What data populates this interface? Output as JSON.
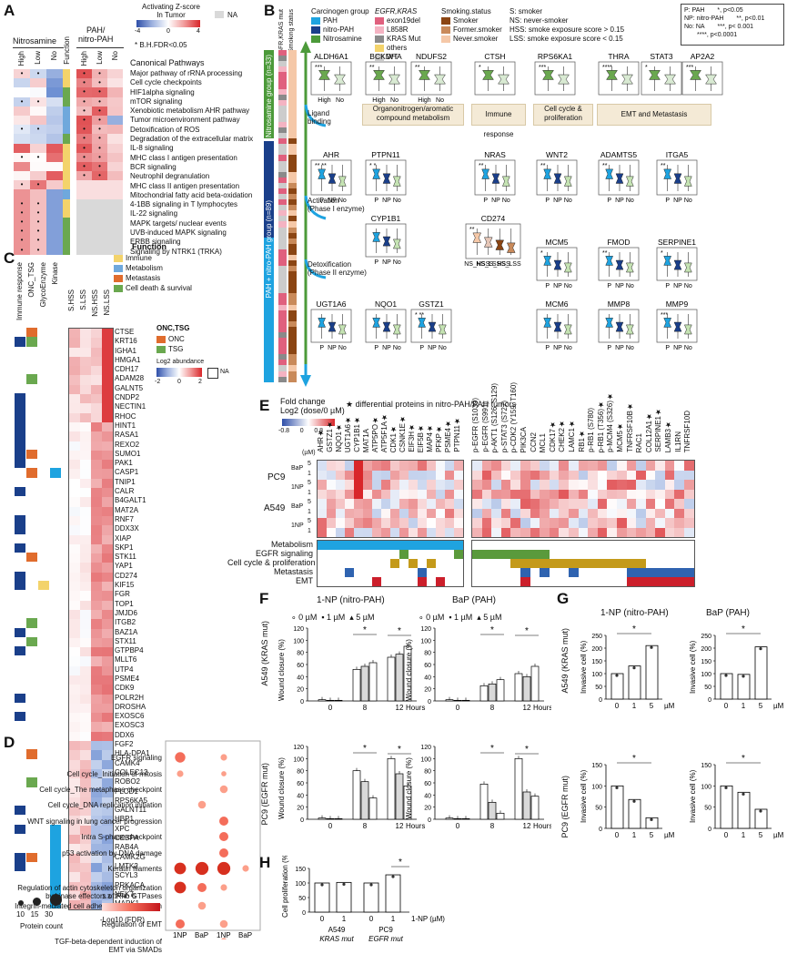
{
  "panels": {
    "A": {
      "letter": "A",
      "legend_title": "Activating Z-score\nIn Tumor",
      "legend_ticks": [
        "-4",
        "0",
        "4"
      ],
      "na": "NA",
      "fdr_note": "* B.H.FDR<0.05",
      "group_nitrosamine": "Nitrosamine",
      "group_pah": "PAH/\nnitro-PAH",
      "col_labels": [
        "High",
        "Low",
        "No"
      ],
      "function_label": "Function",
      "pathways_header": "Canonical Pathways",
      "pathways": [
        "Major pathway of rRNA processing",
        "Cell cycle checkpoints",
        "HIF1alpha signaling",
        "mTOR signaling",
        "Xenobiotic metabolism AHR pathway",
        "Tumor microenvironment pathway",
        "Detoxification of ROS",
        "Degradation of the extracellular matrix",
        "IL-8 signaling",
        "MHC class I antigen presentation",
        "BCR signaling",
        "Neutrophil degranulation",
        "MHC class II antigen presentation",
        "Mitochondrial fatty acid beta-oxidation",
        "4-1BB signaling in T lymphocytes",
        "IL-22 signaling",
        "MAPK targets/ nuclear events",
        "UVB-induced MAPK signaling",
        "ERBB signaling",
        "Signaling by NTRK1 (TRKA)"
      ],
      "colors": {
        "neg": "#3b5fbf",
        "pos": "#d8262a",
        "na": "#d9d9d9"
      }
    },
    "B": {
      "letter": "B",
      "col_labels": [
        "EGFR,KRAS mut",
        "Smoking status"
      ],
      "legend_carcinogen_title": "Carcinogen group",
      "carcinogen_groups": [
        "PAH",
        "nitro-PAH",
        "Nitrosamine"
      ],
      "legend_egfr_title": "EGFR,KRAS",
      "egfr_items": [
        "exon19del",
        "L858R",
        "KRAS Mut",
        "others",
        "WT"
      ],
      "legend_smoking_title": "Smoking.status",
      "smoking_items": [
        "Smoker",
        "Former.smoker",
        "Never.smoker"
      ],
      "abbrev": [
        "S: smoker",
        "NS: never-smoker",
        "HSS: smoke exposure score > 0.15",
        "LSS: smoke exposure score < 0.15"
      ],
      "sig": [
        "P: PAH",
        "NP: nitro-PAH",
        "No: NA",
        "*, p<0.05",
        "**, p<0.01",
        "***, p< 0.001",
        "****, p<0.0001"
      ],
      "nitrosamine_group": "Nitrosamine group",
      "nitrosamine_n": "(n=33)",
      "pah_group": "PAH + nitro-PAH group",
      "pah_n": "(n=89)",
      "process_boxes": [
        "Organonitrogen/aromatic compound metabolism",
        "Immune response",
        "Cell cycle & proliferation",
        "EMT and Metastasis"
      ],
      "side_labels": [
        "Ligand binding",
        "Activation (Phase I enzyme)",
        "Detoxification (Phase II enzyme)"
      ],
      "genes_top": [
        "ALDH6A1",
        "BCKDHA",
        "NDUFS2",
        "CTSH",
        "RPS6KA1",
        "THRA",
        "STAT3",
        "AP2A2"
      ],
      "genes_top_sig": [
        "***",
        "**",
        "**",
        "*",
        "***",
        "****",
        "*",
        "***"
      ],
      "genes_mid": [
        "AHR",
        "PTPN11",
        "NRAS",
        "WNT2",
        "ADAMTS5",
        "ITGA5"
      ],
      "genes_mid_sig": [
        "** **",
        "* *",
        "**",
        "**",
        "**",
        "**"
      ],
      "genes_act": [
        "CYP1B1",
        "CD274",
        "MCM5",
        "FMOD",
        "SERPINE1"
      ],
      "genes_det": [
        "UGT1A6",
        "NQO1",
        "GSTZ1",
        "MCM6",
        "MMP8",
        "MMP9"
      ],
      "x_hl": [
        "High",
        "No"
      ],
      "x_pnp": [
        "P",
        "NP",
        "No"
      ],
      "x_cd274": [
        "NS_HSS",
        "NS_LSS",
        "S_HSS",
        "S_LSS"
      ]
    },
    "C": {
      "letter": "C",
      "annot_cols": [
        "Immune response",
        "ONC_TSG",
        "GlycoEnzyme",
        "Kinase"
      ],
      "heat_cols": [
        "S.HSS",
        "S.LSS",
        "NS.HSS",
        "NS.LSS"
      ],
      "function_title": "Function",
      "functions": [
        "Immune",
        "Metabolism",
        "Metastasis",
        "Cell death & survival"
      ],
      "function_colors": [
        "#f3d36b",
        "#6fa8dc",
        "#e06c2d",
        "#6aa84f"
      ],
      "onc_title": "ONC,TSG",
      "onc_items": [
        "ONC",
        "TSG"
      ],
      "abund_title": "Log2 abundance",
      "abund_ticks": [
        "-2",
        "0",
        "2"
      ],
      "na": "NA",
      "genes": [
        "CTSE",
        "KRT16",
        "IGHA1",
        "HMGA1",
        "CDH17",
        "ADAM28",
        "GALNT5",
        "CNDP2",
        "NECTIN1",
        "RHOC",
        "HINT1",
        "RASA1",
        "REXO2",
        "SUMO1",
        "PAK1",
        "CASP1",
        "TNIP1",
        "CALR",
        "B4GALT1",
        "MAT2A",
        "RNF7",
        "DDX3X",
        "XIAP",
        "SKP1",
        "STK11",
        "YAP1",
        "CD274",
        "KIF15",
        "FGR",
        "TOP1",
        "JMJD6",
        "ITGB2",
        "BAZ1A",
        "STX11",
        "GTPBP4",
        "MLLT6",
        "UTP4",
        "PSME4",
        "CDK9",
        "POLR2H",
        "DROSHA",
        "EXOSC6",
        "EXOSC3",
        "DDX6",
        "FGF2",
        "HLA-DPA1",
        "CAMK4",
        "COLEC12",
        "ROBO2",
        "PLCD1",
        "RPS6KA5",
        "GALNT11",
        "HBP1",
        "XPC",
        "CEBPA",
        "RAB4A",
        "CAMK2G",
        "LMTK2",
        "SCYL3",
        "PRKACA",
        "NEK7",
        "MAPK1"
      ]
    },
    "D": {
      "letter": "D",
      "terms": [
        "EGFR signaling",
        "Cell cycle_Initiation of mitosis",
        "Cell cycle_The metaphase checkpoint",
        "Cell cycle_DNA replication initiation",
        "WNT signaling in lung cancer progression",
        "Intra S-phase checkpoint",
        "p53 activation by DNA damage",
        "Keratin filaments",
        "Regulation of actin cytoskeleton organization\nby kinase effectors of Rho GTPases",
        "Integrin-mediated cell adhesion and migration",
        "Regulation of EMT",
        "TGF-beta-dependent induction of\nEMT via SMADs"
      ],
      "col_labels": [
        "1NP",
        "BaP",
        "1NP",
        "BaP"
      ],
      "cell_lines": [
        "A549",
        "PC9"
      ],
      "size_legend_title": "Protein count",
      "size_values": [
        "10",
        "15",
        "30"
      ],
      "fdr_title": "-Log10 (FDR)",
      "fdr_ticks": [
        "1.3",
        "2",
        "4",
        "6"
      ],
      "dots": [
        [
          8,
          0,
          5,
          0
        ],
        [
          5,
          0,
          4,
          0
        ],
        [
          0,
          0,
          6,
          0
        ],
        [
          0,
          6,
          0,
          0
        ],
        [
          0,
          0,
          7,
          0
        ],
        [
          0,
          0,
          7,
          0
        ],
        [
          0,
          0,
          7,
          0
        ],
        [
          9,
          10,
          10,
          5
        ],
        [
          9,
          7,
          5,
          0
        ],
        [
          0,
          6,
          0,
          0
        ],
        [
          7,
          0,
          6,
          0
        ],
        [
          0,
          0,
          5,
          0
        ]
      ]
    },
    "E": {
      "letter": "E",
      "fc_title": "Fold change\nLog2 (dose/0 µM)",
      "fc_ticks": [
        "-0.8",
        "0",
        "0.8"
      ],
      "star_note": "★ differential proteins in nitro-PAH/PAH tumors",
      "um": "(µM)",
      "lines": [
        "PC9",
        "A549"
      ],
      "treat": [
        "BaP",
        "1NP",
        "BaP",
        "1NP"
      ],
      "doses": [
        "5",
        "1",
        "5",
        "1",
        "5",
        "1",
        "5",
        "1"
      ],
      "cols_left": [
        "AHR★",
        "GSTZ1★",
        "NQO1★",
        "UGT1A6★",
        "CYP1B1★",
        "MAT1A",
        "ATP5PO★",
        "ATP5F1A★",
        "CDK1★",
        "CSNK1E★",
        "EIF3H★",
        "EIF5B★",
        "MAP4★",
        "PFKP★",
        "PSME4★",
        "PTPN11★"
      ],
      "cols_right": [
        "p-EGFR (S1039)",
        "p-EGFR (S991)",
        "p-AKT1 (S126, S129)",
        "p-STAT3 (S727)",
        "p-CDK2 (Y159, T160)",
        "PIK3CA",
        "CCN2",
        "MCL1",
        "CDK17★",
        "CHEK2★",
        "LAMC1★",
        "RB1★",
        "p-RB1 (S780)",
        "p-RB1 (T356)★",
        "p-MCM4 (S326)★",
        "MCM5★",
        "TNFRSF10B★",
        "RAC1",
        "COL12A1★",
        "SERPINE1★",
        "LAMB3★",
        "IL1RN",
        "TNFRSF10D"
      ],
      "categories": [
        "Metabolism",
        "EGFR signaling",
        "Cell cycle & proliferation",
        "Metastasis",
        "EMT"
      ],
      "category_colors": [
        "#1fa3e0",
        "#5a9a3c",
        "#c49a1a",
        "#2f63b0",
        "#cc1f2b"
      ]
    },
    "F": {
      "letter": "F",
      "titles": [
        "1-NP (nitro-PAH)",
        "BaP (PAH)"
      ],
      "legend": [
        "0 µM",
        "1 µM",
        "5 µM"
      ],
      "ylabel": "Wound closure (%)",
      "row_labels": [
        "A549 (KRAS mut)",
        "PC9 (EGFR mut)"
      ],
      "xticks": [
        "0",
        "8",
        "12"
      ],
      "xunit": "Hours",
      "yticks": [
        "0",
        "20",
        "40",
        "60",
        "80",
        "100",
        "120"
      ]
    },
    "G": {
      "letter": "G",
      "titles": [
        "1-NP (nitro-PAH)",
        "BaP (PAH)"
      ],
      "ylabel": "Invasive cell (%)",
      "row_labels": [
        "A549 (KRAS mut)",
        "PC9 (EGFR mut)"
      ],
      "xticks": [
        "0",
        "1",
        "5"
      ],
      "xunit": "µM",
      "yticks_top": [
        "0",
        "50",
        "100",
        "150",
        "200",
        "250"
      ],
      "yticks_bot": [
        "0",
        "50",
        "100",
        "150"
      ]
    },
    "H": {
      "letter": "H",
      "ylabel": "Cell proliferation (%)",
      "yticks": [
        "0",
        "50",
        "100",
        "150"
      ],
      "xticks": [
        "0",
        "1",
        "0",
        "1"
      ],
      "xunit": "1-NP (µM)",
      "groups": [
        "A549",
        "PC9"
      ],
      "group_sub": [
        "KRAS mut",
        "EGFR mut"
      ]
    }
  },
  "chart_data": [
    {
      "type": "bar",
      "title": "1-NP (nitro-PAH)",
      "ylabel": "Wound closure (%)",
      "categories": [
        "0",
        "8",
        "12"
      ],
      "series": [
        {
          "name": "0 µM",
          "values": [
            2,
            52,
            72
          ]
        },
        {
          "name": "1 µM",
          "values": [
            1,
            57,
            77
          ]
        },
        {
          "name": "5 µM",
          "values": [
            1,
            63,
            90
          ]
        }
      ],
      "ylim": [
        0,
        120
      ]
    },
    {
      "type": "bar",
      "title": "BaP (PAH)",
      "ylabel": "Wound closure (%)",
      "categories": [
        "0",
        "8",
        "12"
      ],
      "series": [
        {
          "name": "0 µM",
          "values": [
            2,
            25,
            45
          ]
        },
        {
          "name": "1 µM",
          "values": [
            1,
            28,
            40
          ]
        },
        {
          "name": "5 µM",
          "values": [
            1,
            35,
            57
          ]
        }
      ],
      "ylim": [
        0,
        120
      ]
    },
    {
      "type": "bar",
      "ylabel": "Wound closure (%)",
      "categories": [
        "0",
        "8",
        "12"
      ],
      "series": [
        {
          "name": "0 µM",
          "values": [
            2,
            80,
            100
          ]
        },
        {
          "name": "1 µM",
          "values": [
            1,
            62,
            75
          ]
        },
        {
          "name": "5 µM",
          "values": [
            1,
            35,
            55
          ]
        }
      ],
      "ylim": [
        0,
        120
      ]
    },
    {
      "type": "bar",
      "ylabel": "Wound closure (%)",
      "categories": [
        "0",
        "8",
        "12"
      ],
      "series": [
        {
          "name": "0 µM",
          "values": [
            2,
            58,
            100
          ]
        },
        {
          "name": "1 µM",
          "values": [
            1,
            28,
            45
          ]
        },
        {
          "name": "5 µM",
          "values": [
            1,
            10,
            38
          ]
        }
      ],
      "ylim": [
        0,
        120
      ]
    },
    {
      "type": "bar",
      "title": "1-NP (nitro-PAH)",
      "ylabel": "Invasive cell (%)",
      "categories": [
        "0",
        "1",
        "5"
      ],
      "values": [
        100,
        130,
        210
      ],
      "ylim": [
        0,
        250
      ]
    },
    {
      "type": "bar",
      "title": "BaP (PAH)",
      "ylabel": "Invasive cell (%)",
      "categories": [
        "0",
        "1",
        "5"
      ],
      "values": [
        100,
        97,
        205
      ],
      "ylim": [
        0,
        250
      ]
    },
    {
      "type": "bar",
      "ylabel": "Invasive cell (%)",
      "categories": [
        "0",
        "1",
        "5"
      ],
      "values": [
        100,
        68,
        25
      ],
      "ylim": [
        0,
        150
      ]
    },
    {
      "type": "bar",
      "ylabel": "Invasive cell (%)",
      "categories": [
        "0",
        "1",
        "5"
      ],
      "values": [
        100,
        85,
        45
      ],
      "ylim": [
        0,
        150
      ]
    },
    {
      "type": "bar",
      "ylabel": "Cell proliferation (%)",
      "categories": [
        "A549 0",
        "A549 1",
        "PC9 0",
        "PC9 1"
      ],
      "values": [
        100,
        102,
        100,
        128
      ],
      "ylim": [
        0,
        150
      ]
    }
  ]
}
